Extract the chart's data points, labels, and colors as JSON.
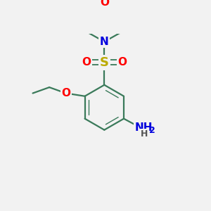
{
  "bg_color": "#f2f2f2",
  "bond_color": "#3a7a5a",
  "bond_width": 1.6,
  "atom_colors": {
    "O": "#ff0000",
    "N": "#0000dd",
    "S": "#bbaa00",
    "H": "#555555"
  },
  "font_size_atoms": 11,
  "font_size_sub": 9,
  "figsize": [
    3.0,
    3.0
  ],
  "dpi": 100
}
